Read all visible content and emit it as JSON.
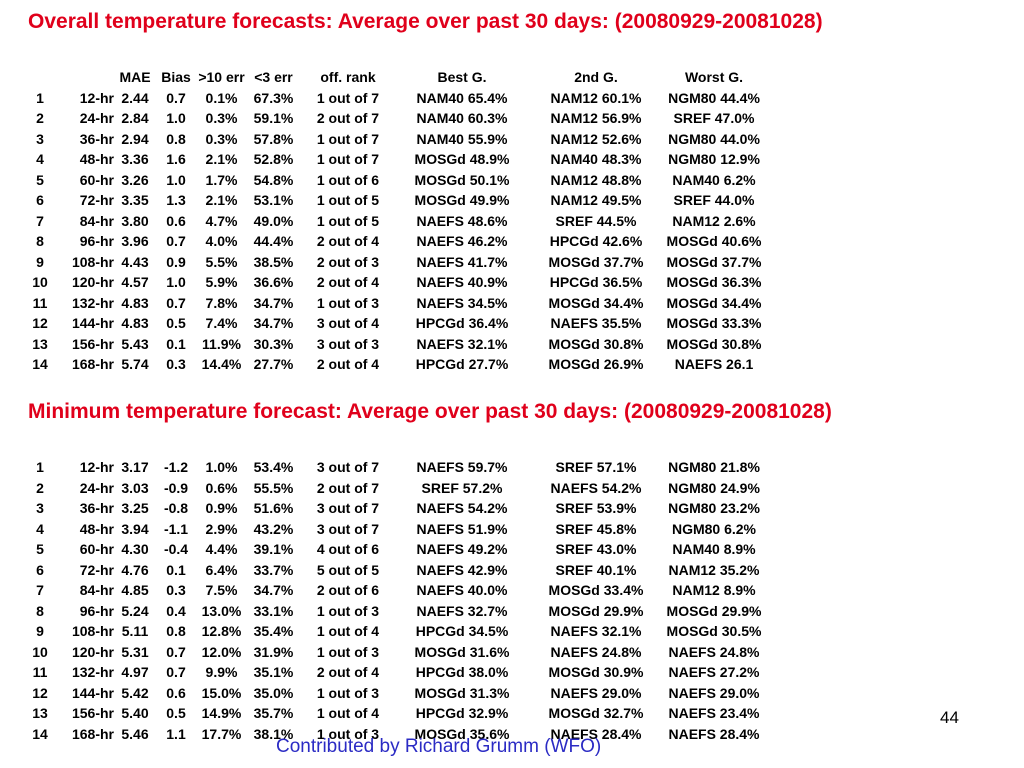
{
  "overall": {
    "title": "Overall temperature forecasts: Average over past 30 days: (20080929-20081028)",
    "headers": {
      "n": "",
      "lead": "",
      "mae": "MAE",
      "bias": "Bias",
      "err10": ">10 err",
      "err3": "<3 err",
      "rank": "off. rank",
      "best": "Best G.",
      "second": "2nd G.",
      "worst": "Worst G."
    },
    "rows": [
      {
        "n": "1",
        "lead": "12-hr",
        "mae": "2.44",
        "bias": "0.7",
        "err10": "0.1%",
        "err3": "67.3%",
        "rank": "1 out of 7",
        "best": "NAM40   65.4%",
        "second": "NAM12   60.1%",
        "worst": "NGM80   44.4%"
      },
      {
        "n": "2",
        "lead": "24-hr",
        "mae": "2.84",
        "bias": "1.0",
        "err10": "0.3%",
        "err3": "59.1%",
        "rank": "2 out of 7",
        "best": "NAM40   60.3%",
        "second": "NAM12   56.9%",
        "worst": "SREF     47.0%"
      },
      {
        "n": "3",
        "lead": "36-hr",
        "mae": "2.94",
        "bias": "0.8",
        "err10": "0.3%",
        "err3": "57.8%",
        "rank": "1 out of 7",
        "best": "NAM40   55.9%",
        "second": "NAM12   52.6%",
        "worst": "NGM80   44.0%"
      },
      {
        "n": "4",
        "lead": "48-hr",
        "mae": "3.36",
        "bias": "1.6",
        "err10": "2.1%",
        "err3": "52.8%",
        "rank": "1 out of 7",
        "best": "MOSGd   48.9%",
        "second": "NAM40   48.3%",
        "worst": "NGM80   12.9%"
      },
      {
        "n": "5",
        "lead": "60-hr",
        "mae": "3.26",
        "bias": "1.0",
        "err10": "1.7%",
        "err3": "54.8%",
        "rank": "1 out of 6",
        "best": "MOSGd   50.1%",
        "second": "NAM12   48.8%",
        "worst": "NAM40    6.2%"
      },
      {
        "n": "6",
        "lead": "72-hr",
        "mae": "3.35",
        "bias": "1.3",
        "err10": "2.1%",
        "err3": "53.1%",
        "rank": "1 out of 5",
        "best": "MOSGd   49.9%",
        "second": "NAM12   49.5%",
        "worst": "SREF    44.0%"
      },
      {
        "n": "7",
        "lead": "84-hr",
        "mae": "3.80",
        "bias": "0.6",
        "err10": "4.7%",
        "err3": "49.0%",
        "rank": "1 out of 5",
        "best": "NAEFS   48.6%",
        "second": "SREF      44.5%",
        "worst": "NAM12     2.6%"
      },
      {
        "n": "8",
        "lead": "96-hr",
        "mae": "3.96",
        "bias": "0.7",
        "err10": "4.0%",
        "err3": "44.4%",
        "rank": "2 out of 4",
        "best": "NAEFS   46.2%",
        "second": "HPCGd   42.6%",
        "worst": "MOSGd   40.6%"
      },
      {
        "n": "9",
        "lead": "108-hr",
        "mae": "4.43",
        "bias": "0.9",
        "err10": "5.5%",
        "err3": "38.5%",
        "rank": "2 out of 3",
        "best": "NAEFS   41.7%",
        "second": "MOSGd   37.7%",
        "worst": "MOSGd   37.7%"
      },
      {
        "n": "10",
        "lead": "120-hr",
        "mae": "4.57",
        "bias": "1.0",
        "err10": "5.9%",
        "err3": "36.6%",
        "rank": "2 out of 4",
        "best": "NAEFS   40.9%",
        "second": "HPCGd   36.5%",
        "worst": "MOSGd   36.3%"
      },
      {
        "n": "11",
        "lead": "132-hr",
        "mae": "4.83",
        "bias": "0.7",
        "err10": "7.8%",
        "err3": "34.7%",
        "rank": "1 out of 3",
        "best": "NAEFS   34.5%",
        "second": "MOSGd   34.4%",
        "worst": "MOSGd   34.4%"
      },
      {
        "n": "12",
        "lead": "144-hr",
        "mae": "4.83",
        "bias": "0.5",
        "err10": "7.4%",
        "err3": "34.7%",
        "rank": "3 out of 4",
        "best": "HPCGd   36.4%",
        "second": "NAEFS   35.5%",
        "worst": "MOSGd   33.3%"
      },
      {
        "n": "13",
        "lead": "156-hr",
        "mae": "5.43",
        "bias": "0.1",
        "err10": "11.9%",
        "err3": "30.3%",
        "rank": "3 out of 3",
        "best": "NAEFS   32.1%",
        "second": "MOSGd   30.8%",
        "worst": "MOSGd   30.8%"
      },
      {
        "n": "14",
        "lead": "168-hr",
        "mae": "5.74",
        "bias": "0.3",
        "err10": "14.4%",
        "err3": "27.7%",
        "rank": "2 out of 4",
        "best": "HPCGd   27.7%",
        "second": "MOSGd   26.9%",
        "worst": "NAEFS   26.1"
      }
    ]
  },
  "minimum": {
    "title": "Minimum temperature forecast: Average over past 30 days: (20080929-20081028)",
    "rows": [
      {
        "n": "1",
        "lead": "12-hr",
        "mae": "3.17",
        "bias": "-1.2",
        "err10": "1.0%",
        "err3": "53.4%",
        "rank": "3 out of 7",
        "best": "NAEFS   59.7%",
        "second": "SREF      57.1%",
        "worst": "NGM80   21.8%"
      },
      {
        "n": "2",
        "lead": "24-hr",
        "mae": "3.03",
        "bias": "-0.9",
        "err10": "0.6%",
        "err3": "55.5%",
        "rank": "2 out of 7",
        "best": "SREF     57.2%",
        "second": "NAEFS    54.2%",
        "worst": "NGM80   24.9%"
      },
      {
        "n": "3",
        "lead": "36-hr",
        "mae": "3.25",
        "bias": "-0.8",
        "err10": "0.9%",
        "err3": "51.6%",
        "rank": "3 out of 7",
        "best": "NAEFS   54.2%",
        "second": "SREF      53.9%",
        "worst": "NGM80   23.2%"
      },
      {
        "n": "4",
        "lead": "48-hr",
        "mae": "3.94",
        "bias": "-1.1",
        "err10": "2.9%",
        "err3": "43.2%",
        "rank": "3 out of 7",
        "best": "NAEFS   51.9%",
        "second": "SREF      45.8%",
        "worst": "NGM80     6.2%"
      },
      {
        "n": "5",
        "lead": "60-hr",
        "mae": "4.30",
        "bias": "-0.4",
        "err10": "4.4%",
        "err3": "39.1%",
        "rank": "4 out of 6",
        "best": "NAEFS   49.2%",
        "second": "SREF      43.0%",
        "worst": "NAM40     8.9%"
      },
      {
        "n": "6",
        "lead": "72-hr",
        "mae": "4.76",
        "bias": "0.1",
        "err10": "6.4%",
        "err3": "33.7%",
        "rank": "5 out of 5",
        "best": "NAEFS   42.9%",
        "second": "SREF      40.1%",
        "worst": "NAM12    35.2%"
      },
      {
        "n": "7",
        "lead": "84-hr",
        "mae": "4.85",
        "bias": "0.3",
        "err10": "7.5%",
        "err3": "34.7%",
        "rank": "2 out of 6",
        "best": "NAEFS   40.0%",
        "second": "MOSGd   33.4%",
        "worst": "NAM12     8.9%"
      },
      {
        "n": "8",
        "lead": "96-hr",
        "mae": "5.24",
        "bias": "0.4",
        "err10": "13.0%",
        "err3": "33.1%",
        "rank": "1 out of 3",
        "best": "NAEFS   32.7%",
        "second": "MOSGd   29.9%",
        "worst": "MOSGd   29.9%"
      },
      {
        "n": "9",
        "lead": "108-hr",
        "mae": "5.11",
        "bias": "0.8",
        "err10": "12.8%",
        "err3": "35.4%",
        "rank": "1 out of 4",
        "best": "HPCGd   34.5%",
        "second": "NAEFS    32.1%",
        "worst": "MOSGd   30.5%"
      },
      {
        "n": "10",
        "lead": "120-hr",
        "mae": "5.31",
        "bias": "0.7",
        "err10": "12.0%",
        "err3": "31.9%",
        "rank": "1 out of 3",
        "best": "MOSGd   31.6%",
        "second": "NAEFS   24.8%",
        "worst": "NAEFS    24.8%"
      },
      {
        "n": "11",
        "lead": "132-hr",
        "mae": "4.97",
        "bias": "0.7",
        "err10": "9.9%",
        "err3": "35.1%",
        "rank": "2 out of 4",
        "best": "HPCGd   38.0%",
        "second": "MOSGd   30.9%",
        "worst": "NAEFS    27.2%"
      },
      {
        "n": "12",
        "lead": "144-hr",
        "mae": "5.42",
        "bias": "0.6",
        "err10": "15.0%",
        "err3": "35.0%",
        "rank": "1 out of 3",
        "best": "MOSGd   31.3%",
        "second": "NAEFS   29.0%",
        "worst": "NAEFS    29.0%"
      },
      {
        "n": "13",
        "lead": "156-hr",
        "mae": "5.40",
        "bias": "0.5",
        "err10": "14.9%",
        "err3": "35.7%",
        "rank": "1 out of 4",
        "best": "HPCGd   32.9%",
        "second": "MOSGd   32.7%",
        "worst": "NAEFS    23.4%"
      },
      {
        "n": "14",
        "lead": "168-hr",
        "mae": "5.46",
        "bias": "1.1",
        "err10": "17.7%",
        "err3": "38.1%",
        "rank": "1 out of 3",
        "best": "MOSGd   35.6%",
        "second": "NAEFS   28.4%",
        "worst": "NAEFS    28.4%"
      }
    ]
  },
  "footer": {
    "page_number": "44",
    "credit": "Contributed by Richard Grumm (WFO)"
  },
  "colors": {
    "heading": "#e0001b",
    "credit": "#2b2bc4",
    "text": "#000000",
    "background": "#ffffff"
  }
}
